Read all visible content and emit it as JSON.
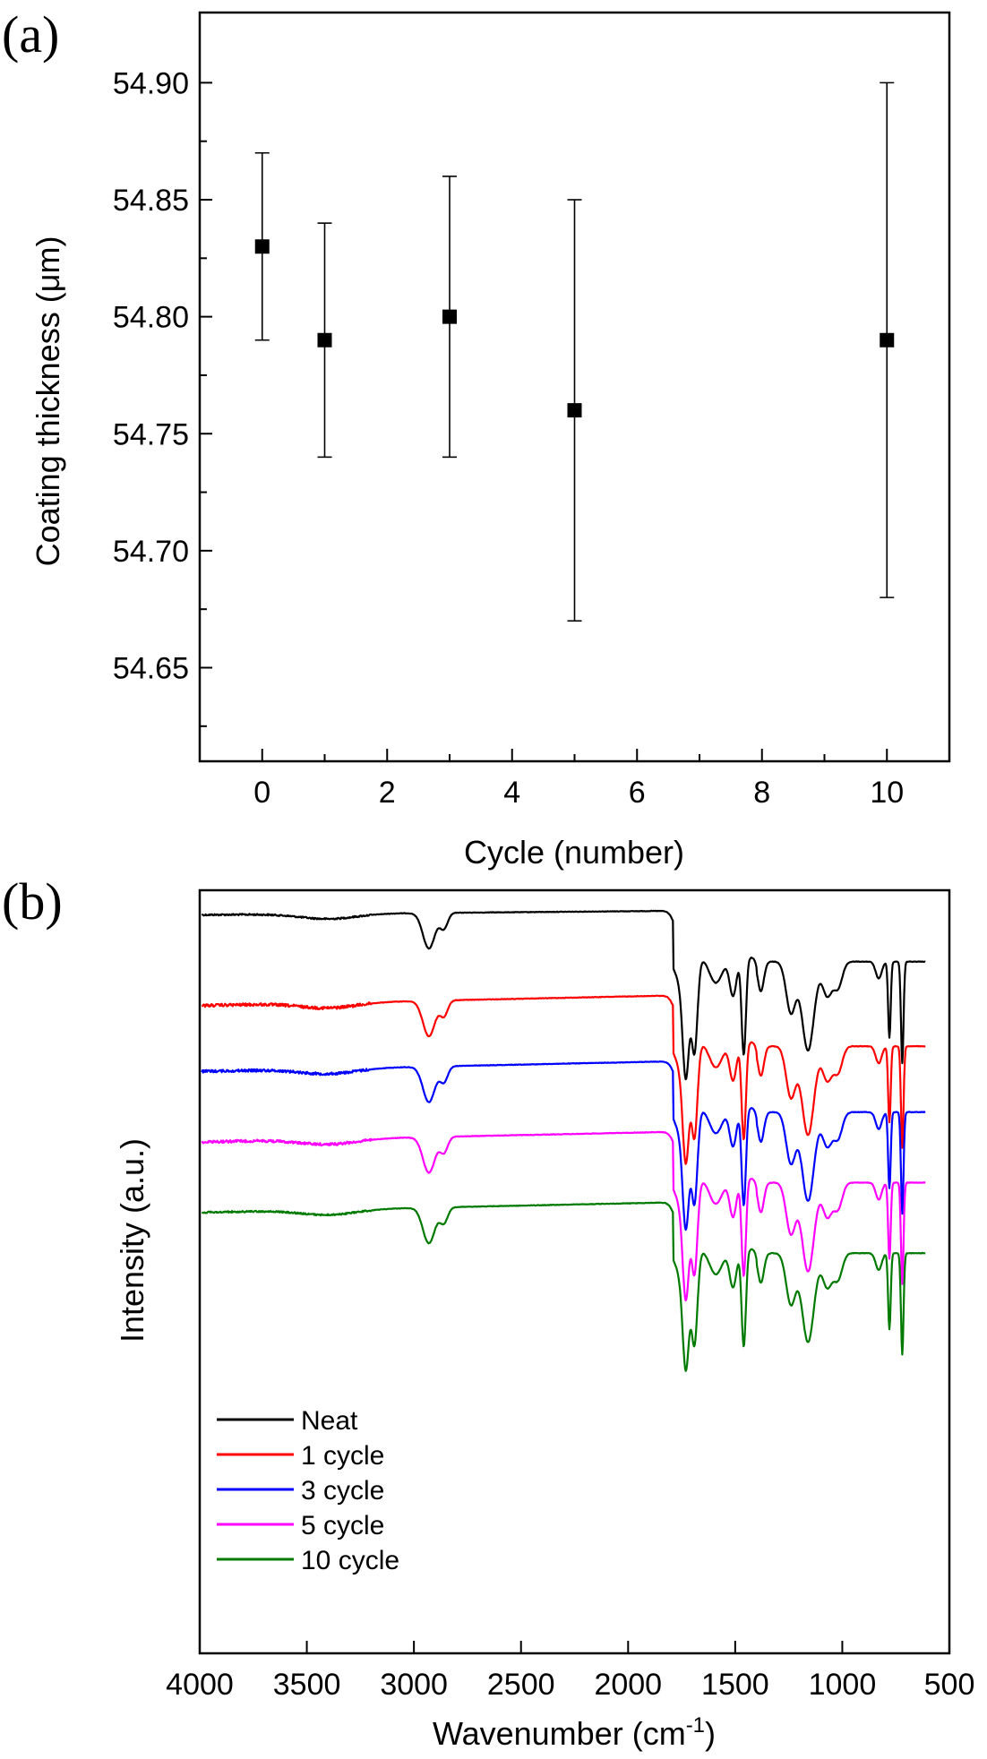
{
  "chart_data": [
    {
      "panel": "(a)",
      "type": "scatter",
      "title": "",
      "xlabel": "Cycle (number)",
      "ylabel": "Coating thickness (μm)",
      "xlim": [
        -1,
        11
      ],
      "ylim": [
        54.61,
        54.93
      ],
      "xticks": [
        0,
        2,
        4,
        6,
        8,
        10
      ],
      "xtick_labels": [
        "0",
        "2",
        "4",
        "6",
        "8",
        "10"
      ],
      "yticks": [
        54.65,
        54.7,
        54.75,
        54.8,
        54.85,
        54.9
      ],
      "ytick_labels": [
        "54.65",
        "54.70",
        "54.75",
        "54.80",
        "54.85",
        "54.90"
      ],
      "series": [
        {
          "name": "Coating thickness",
          "x": [
            0,
            1,
            3,
            5,
            10
          ],
          "y": [
            54.83,
            54.79,
            54.8,
            54.76,
            54.79
          ],
          "err_low": [
            54.79,
            54.74,
            54.74,
            54.67,
            54.68
          ],
          "err_high": [
            54.87,
            54.84,
            54.86,
            54.85,
            54.9
          ]
        }
      ]
    },
    {
      "panel": "(b)",
      "type": "line",
      "title": "",
      "xlabel": "Wavenumber (cm",
      "xlabel_sup": "-1",
      "xlabel_tail": ")",
      "ylabel": "Intensity (a.u.)",
      "xlim": [
        4000,
        500
      ],
      "xticks": [
        4000,
        3500,
        3000,
        2500,
        2000,
        1500,
        1000,
        500
      ],
      "xtick_labels": [
        "4000",
        "3500",
        "3000",
        "2500",
        "2000",
        "1500",
        "1000",
        "500"
      ],
      "legend_position": "bottom-left",
      "series": [
        {
          "name": "Neat",
          "color": "#000000",
          "baseline": 0.0,
          "base_value": 1,
          "noise": 0.3
        },
        {
          "name": "1 cycle",
          "color": "#ff0000",
          "baseline": 0.9,
          "base_value": 2,
          "noise": 0.55
        },
        {
          "name": "3 cycle",
          "color": "#0000ff",
          "baseline": 1.6,
          "base_value": 3,
          "noise": 0.5
        },
        {
          "name": "5 cycle",
          "color": "#ff00ff",
          "baseline": 2.35,
          "base_value": 5,
          "noise": 0.5
        },
        {
          "name": "10 cycle",
          "color": "#007a00",
          "baseline": 3.1,
          "base_value": 10,
          "noise": 0.3
        }
      ],
      "absorption_bands": [
        {
          "wavenumber": 3400,
          "depth": 0.06,
          "width": 130
        },
        {
          "wavenumber": 2930,
          "depth": 0.42,
          "width": 28
        },
        {
          "wavenumber": 2860,
          "depth": 0.18,
          "width": 18
        },
        {
          "wavenumber": 1760,
          "depth": 0.25,
          "width": 25
        },
        {
          "wavenumber": 1730,
          "depth": 1.3,
          "width": 15
        },
        {
          "wavenumber": 1690,
          "depth": 1.1,
          "width": 14
        },
        {
          "wavenumber": 1590,
          "depth": 0.3,
          "width": 30
        },
        {
          "wavenumber": 1510,
          "depth": 0.45,
          "width": 16
        },
        {
          "wavenumber": 1460,
          "depth": 1.15,
          "width": 10
        },
        {
          "wavenumber": 1380,
          "depth": 0.35,
          "width": 14
        },
        {
          "wavenumber": 1240,
          "depth": 0.6,
          "width": 22
        },
        {
          "wavenumber": 1160,
          "depth": 1.05,
          "width": 28
        },
        {
          "wavenumber": 1070,
          "depth": 0.4,
          "width": 22
        },
        {
          "wavenumber": 1020,
          "depth": 0.3,
          "width": 20
        },
        {
          "wavenumber": 830,
          "depth": 0.2,
          "width": 14
        },
        {
          "wavenumber": 780,
          "depth": 0.9,
          "width": 6
        },
        {
          "wavenumber": 720,
          "depth": 1.2,
          "width": 6
        }
      ]
    }
  ]
}
